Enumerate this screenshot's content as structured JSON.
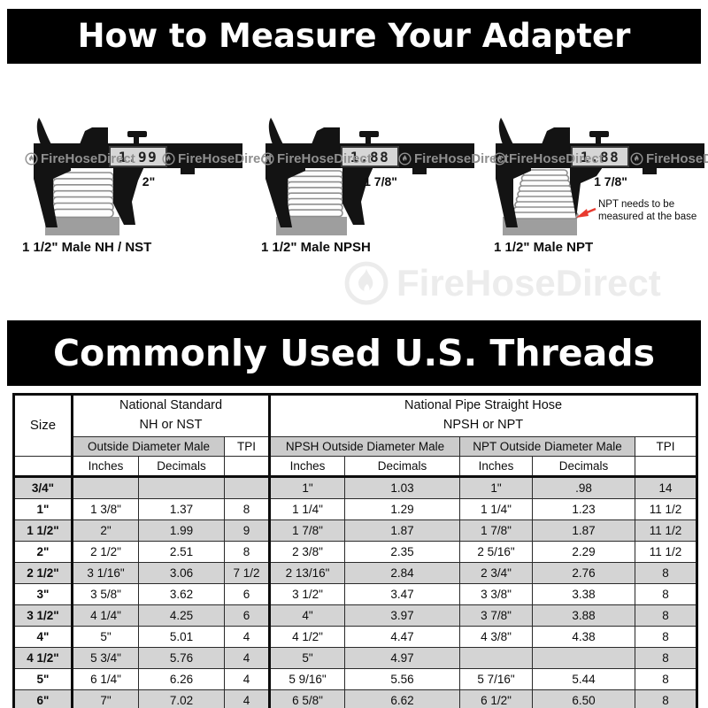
{
  "page": {
    "title_banner": "How to Measure Your Adapter",
    "table_banner": "Commonly Used U.S. Threads",
    "watermark": {
      "text": "FireHoseDirect",
      "icon": "flame-icon"
    }
  },
  "colors": {
    "banner_bg": "#000000",
    "banner_text": "#ffffff",
    "caliper_black": "#131313",
    "base_gray": "#9e9e9e",
    "display_bg": "#d6d6d6",
    "display_digits": "#222222",
    "arrow_red": "#e8392e",
    "row_gray": "#d4d4d4",
    "header_gray": "#cbcbcb"
  },
  "calipers": [
    {
      "display_value": "1.99",
      "measure_label": "2\"",
      "caption": "1 1/2\" Male NH / NST",
      "thread_style": "straight"
    },
    {
      "display_value": "1.88",
      "measure_label": "1 7/8\"",
      "caption": "1 1/2\" Male NPSH",
      "thread_style": "straight"
    },
    {
      "display_value": "1.88",
      "measure_label": "1 7/8\"",
      "caption": "1 1/2\" Male NPT",
      "thread_style": "tapered",
      "annotation": {
        "line1": "NPT needs to be",
        "line2": "measured at the base"
      }
    }
  ],
  "table": {
    "header": {
      "size": "Size",
      "group1_line1": "National Standard",
      "group1_line2": "NH or NST",
      "group2_line1": "National Pipe Straight Hose",
      "group2_line2": "NPSH or NPT",
      "od_male": "Outside Diameter Male",
      "tpi": "TPI",
      "npsh_od_male": "NPSH Outside Diameter Male",
      "npt_od_male": "NPT Outside Diameter Male",
      "tpi2": "TPI",
      "inches": "Inches",
      "decimals": "Decimals"
    },
    "rows": [
      {
        "size": "3/4\"",
        "nh_in": "",
        "nh_dec": "",
        "nh_tpi": "",
        "npsh_in": "1\"",
        "npsh_dec": "1.03",
        "npt_in": "1\"",
        "npt_dec": ".98",
        "tpi": "14"
      },
      {
        "size": "1\"",
        "nh_in": "1 3/8\"",
        "nh_dec": "1.37",
        "nh_tpi": "8",
        "npsh_in": "1 1/4\"",
        "npsh_dec": "1.29",
        "npt_in": "1 1/4\"",
        "npt_dec": "1.23",
        "tpi": "11 1/2"
      },
      {
        "size": "1 1/2\"",
        "nh_in": "2\"",
        "nh_dec": "1.99",
        "nh_tpi": "9",
        "npsh_in": "1 7/8\"",
        "npsh_dec": "1.87",
        "npt_in": "1 7/8\"",
        "npt_dec": "1.87",
        "tpi": "11 1/2"
      },
      {
        "size": "2\"",
        "nh_in": "2 1/2\"",
        "nh_dec": "2.51",
        "nh_tpi": "8",
        "npsh_in": "2 3/8\"",
        "npsh_dec": "2.35",
        "npt_in": "2 5/16\"",
        "npt_dec": "2.29",
        "tpi": "11 1/2"
      },
      {
        "size": "2 1/2\"",
        "nh_in": "3 1/16\"",
        "nh_dec": "3.06",
        "nh_tpi": "7 1/2",
        "npsh_in": "2 13/16\"",
        "npsh_dec": "2.84",
        "npt_in": "2 3/4\"",
        "npt_dec": "2.76",
        "tpi": "8"
      },
      {
        "size": "3\"",
        "nh_in": "3 5/8\"",
        "nh_dec": "3.62",
        "nh_tpi": "6",
        "npsh_in": "3 1/2\"",
        "npsh_dec": "3.47",
        "npt_in": "3 3/8\"",
        "npt_dec": "3.38",
        "tpi": "8"
      },
      {
        "size": "3 1/2\"",
        "nh_in": "4 1/4\"",
        "nh_dec": "4.25",
        "nh_tpi": "6",
        "npsh_in": "4\"",
        "npsh_dec": "3.97",
        "npt_in": "3 7/8\"",
        "npt_dec": "3.88",
        "tpi": "8"
      },
      {
        "size": "4\"",
        "nh_in": "5\"",
        "nh_dec": "5.01",
        "nh_tpi": "4",
        "npsh_in": "4 1/2\"",
        "npsh_dec": "4.47",
        "npt_in": "4 3/8\"",
        "npt_dec": "4.38",
        "tpi": "8"
      },
      {
        "size": "4 1/2\"",
        "nh_in": "5 3/4\"",
        "nh_dec": "5.76",
        "nh_tpi": "4",
        "npsh_in": "5\"",
        "npsh_dec": "4.97",
        "npt_in": "",
        "npt_dec": "",
        "tpi": "8"
      },
      {
        "size": "5\"",
        "nh_in": "6 1/4\"",
        "nh_dec": "6.26",
        "nh_tpi": "4",
        "npsh_in": "5 9/16\"",
        "npsh_dec": "5.56",
        "npt_in": "5 7/16\"",
        "npt_dec": "5.44",
        "tpi": "8"
      },
      {
        "size": "6\"",
        "nh_in": "7\"",
        "nh_dec": "7.02",
        "nh_tpi": "4",
        "npsh_in": "6 5/8\"",
        "npsh_dec": "6.62",
        "npt_in": "6 1/2\"",
        "npt_dec": "6.50",
        "tpi": "8"
      }
    ]
  }
}
